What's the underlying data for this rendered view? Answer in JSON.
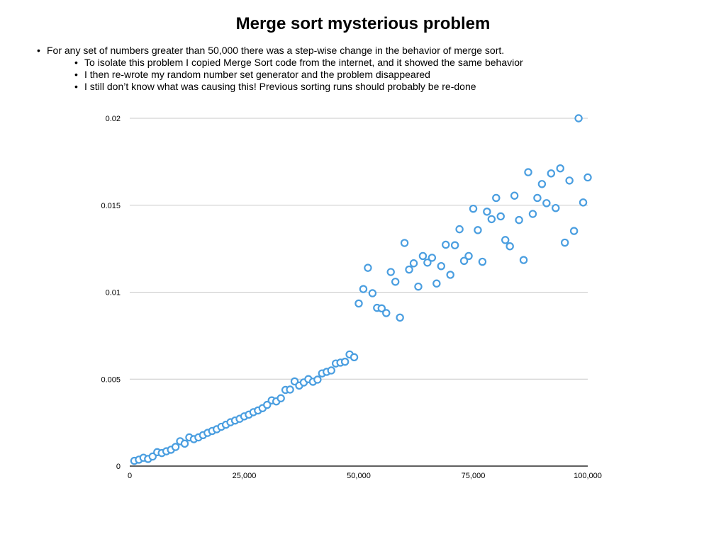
{
  "slide": {
    "title": "Merge sort mysterious problem",
    "bullets": [
      {
        "text": "For any set of numbers greater than 50,000 there was a step-wise change in the behavior of merge sort.",
        "sub": [
          "To isolate this problem I copied Merge Sort code from the internet, and it showed the same behavior",
          "I then re-wrote my random number set generator and the problem disappeared",
          "I still don’t know what was causing this! Previous sorting runs should probably be re-done"
        ]
      }
    ]
  },
  "chart_data": {
    "type": "scatter",
    "title": "",
    "xlabel": "",
    "ylabel": "",
    "xlim": [
      0,
      100000
    ],
    "ylim": [
      0,
      0.02
    ],
    "x_ticks": [
      0,
      25000,
      50000,
      75000,
      100000
    ],
    "x_tick_labels": [
      "0",
      "25,000",
      "50,000",
      "75,000",
      "100,000"
    ],
    "y_ticks": [
      0,
      0.005,
      0.01,
      0.015,
      0.02
    ],
    "y_tick_labels": [
      "0",
      "0.005",
      "0.01",
      "0.015",
      "0.02"
    ],
    "grid": "horizontal",
    "legend": "none",
    "marker_color": "#4a9ee0",
    "grid_color": "#c8c8c8",
    "series": [
      {
        "points": [
          [
            1000,
            0.0003
          ],
          [
            2000,
            0.00037
          ],
          [
            3000,
            0.00048
          ],
          [
            4000,
            0.00041
          ],
          [
            5000,
            0.00055
          ],
          [
            6000,
            0.0008
          ],
          [
            7000,
            0.00075
          ],
          [
            8000,
            0.00085
          ],
          [
            9000,
            0.00094
          ],
          [
            10000,
            0.0011
          ],
          [
            11000,
            0.00143
          ],
          [
            12000,
            0.00129
          ],
          [
            13000,
            0.00165
          ],
          [
            14000,
            0.00155
          ],
          [
            15000,
            0.00165
          ],
          [
            16000,
            0.00178
          ],
          [
            17000,
            0.00191
          ],
          [
            18000,
            0.00202
          ],
          [
            19000,
            0.00212
          ],
          [
            20000,
            0.00226
          ],
          [
            21000,
            0.00238
          ],
          [
            22000,
            0.00252
          ],
          [
            23000,
            0.00262
          ],
          [
            24000,
            0.00272
          ],
          [
            25000,
            0.00286
          ],
          [
            26000,
            0.00296
          ],
          [
            27000,
            0.0031
          ],
          [
            28000,
            0.0032
          ],
          [
            29000,
            0.00333
          ],
          [
            30000,
            0.00352
          ],
          [
            31000,
            0.00378
          ],
          [
            32000,
            0.00372
          ],
          [
            33000,
            0.0039
          ],
          [
            34000,
            0.00438
          ],
          [
            35000,
            0.0044
          ],
          [
            36000,
            0.00487
          ],
          [
            37000,
            0.00463
          ],
          [
            38000,
            0.00481
          ],
          [
            39000,
            0.005
          ],
          [
            40000,
            0.00485
          ],
          [
            41000,
            0.00497
          ],
          [
            42000,
            0.00533
          ],
          [
            43000,
            0.00542
          ],
          [
            44000,
            0.0055
          ],
          [
            45000,
            0.0059
          ],
          [
            46000,
            0.00595
          ],
          [
            47000,
            0.006
          ],
          [
            48000,
            0.00642
          ],
          [
            49000,
            0.00626
          ],
          [
            50000,
            0.00935
          ],
          [
            51000,
            0.01018
          ],
          [
            52000,
            0.0114
          ],
          [
            53000,
            0.00994
          ],
          [
            54000,
            0.0091
          ],
          [
            55000,
            0.00907
          ],
          [
            56000,
            0.0088
          ],
          [
            57000,
            0.01116
          ],
          [
            58000,
            0.0106
          ],
          [
            59000,
            0.00854
          ],
          [
            60000,
            0.01283
          ],
          [
            61000,
            0.0113
          ],
          [
            62000,
            0.01166
          ],
          [
            63000,
            0.01032
          ],
          [
            64000,
            0.01208
          ],
          [
            65000,
            0.0117
          ],
          [
            66000,
            0.01198
          ],
          [
            67000,
            0.0105
          ],
          [
            68000,
            0.0115
          ],
          [
            69000,
            0.01273
          ],
          [
            70000,
            0.011
          ],
          [
            71000,
            0.0127
          ],
          [
            72000,
            0.01362
          ],
          [
            73000,
            0.0118
          ],
          [
            74000,
            0.01208
          ],
          [
            75000,
            0.0148
          ],
          [
            76000,
            0.01357
          ],
          [
            77000,
            0.01175
          ],
          [
            78000,
            0.01463
          ],
          [
            79000,
            0.0142
          ],
          [
            80000,
            0.01542
          ],
          [
            81000,
            0.01436
          ],
          [
            82000,
            0.013
          ],
          [
            83000,
            0.01264
          ],
          [
            84000,
            0.01555
          ],
          [
            85000,
            0.01415
          ],
          [
            86000,
            0.01185
          ],
          [
            87000,
            0.0169
          ],
          [
            88000,
            0.0145
          ],
          [
            89000,
            0.01542
          ],
          [
            90000,
            0.01622
          ],
          [
            91000,
            0.01512
          ],
          [
            92000,
            0.01683
          ],
          [
            93000,
            0.01484
          ],
          [
            94000,
            0.01712
          ],
          [
            95000,
            0.01285
          ],
          [
            96000,
            0.01642
          ],
          [
            97000,
            0.01352
          ],
          [
            98000,
            0.02
          ],
          [
            99000,
            0.01516
          ],
          [
            100000,
            0.0166
          ]
        ]
      }
    ]
  }
}
